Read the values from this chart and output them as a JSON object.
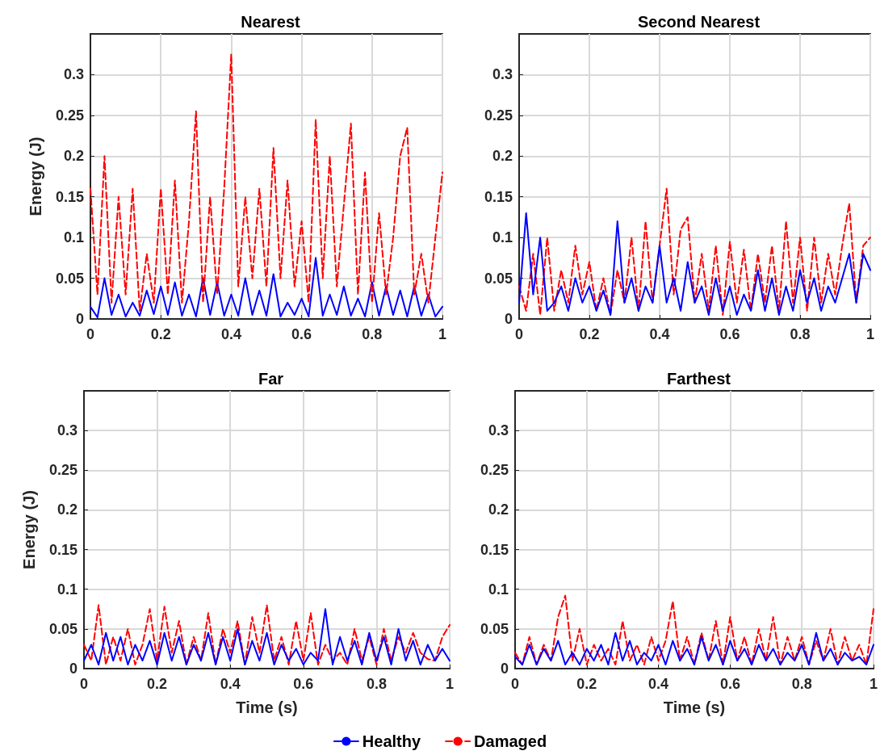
{
  "chart_data": [
    {
      "type": "line",
      "title": "Nearest",
      "ylabel": "Energy (J)",
      "xlim": [
        0,
        1
      ],
      "ylim": [
        0,
        0.35
      ],
      "xticks": [
        0,
        0.2,
        0.4,
        0.6,
        0.8,
        1
      ],
      "yticks": [
        0,
        0.05,
        0.1,
        0.15,
        0.2,
        0.25,
        0.3
      ],
      "grid": true,
      "legend": "bottom",
      "marker": "none",
      "x": [
        0,
        0.02,
        0.04,
        0.06,
        0.08,
        0.1,
        0.12,
        0.14,
        0.16,
        0.18,
        0.2,
        0.22,
        0.24,
        0.26,
        0.28,
        0.3,
        0.32,
        0.34,
        0.36,
        0.38,
        0.4,
        0.42,
        0.44,
        0.46,
        0.48,
        0.5,
        0.52,
        0.54,
        0.56,
        0.58,
        0.6,
        0.62,
        0.64,
        0.66,
        0.68,
        0.7,
        0.72,
        0.74,
        0.76,
        0.78,
        0.8,
        0.82,
        0.84,
        0.86,
        0.88,
        0.9,
        0.92,
        0.94,
        0.96,
        0.98,
        1
      ],
      "series": [
        {
          "name": "Healthy",
          "color": "#0000ff",
          "line_style": "solid",
          "values": [
            0.015,
            0.002,
            0.05,
            0.005,
            0.03,
            0.003,
            0.02,
            0.004,
            0.035,
            0.006,
            0.04,
            0.005,
            0.045,
            0.004,
            0.03,
            0.003,
            0.05,
            0.005,
            0.045,
            0.004,
            0.03,
            0.004,
            0.05,
            0.005,
            0.035,
            0.004,
            0.055,
            0.003,
            0.02,
            0.005,
            0.025,
            0.003,
            0.075,
            0.004,
            0.03,
            0.005,
            0.04,
            0.004,
            0.025,
            0.003,
            0.045,
            0.004,
            0.04,
            0.005,
            0.035,
            0.003,
            0.04,
            0.004,
            0.03,
            0.003,
            0.015
          ]
        },
        {
          "name": "Damaged",
          "color": "#ff0000",
          "line_style": "dashed",
          "values": [
            0.16,
            0.03,
            0.2,
            0.02,
            0.15,
            0.03,
            0.16,
            0.01,
            0.08,
            0.02,
            0.16,
            0.03,
            0.17,
            0.02,
            0.12,
            0.255,
            0.02,
            0.15,
            0.03,
            0.16,
            0.325,
            0.04,
            0.15,
            0.05,
            0.16,
            0.04,
            0.21,
            0.05,
            0.17,
            0.04,
            0.12,
            0.02,
            0.245,
            0.05,
            0.2,
            0.04,
            0.14,
            0.24,
            0.03,
            0.18,
            0.02,
            0.13,
            0.03,
            0.1,
            0.2,
            0.235,
            0.03,
            0.08,
            0.02,
            0.1,
            0.18
          ]
        }
      ]
    },
    {
      "type": "line",
      "title": "Second Nearest",
      "xlim": [
        0,
        1
      ],
      "ylim": [
        0,
        0.35
      ],
      "xticks": [
        0,
        0.2,
        0.4,
        0.6,
        0.8,
        1
      ],
      "yticks": [
        0,
        0.05,
        0.1,
        0.15,
        0.2,
        0.25,
        0.3
      ],
      "grid": true,
      "legend": "bottom",
      "marker": "none",
      "x": [
        0,
        0.02,
        0.04,
        0.06,
        0.08,
        0.1,
        0.12,
        0.14,
        0.16,
        0.18,
        0.2,
        0.22,
        0.24,
        0.26,
        0.28,
        0.3,
        0.32,
        0.34,
        0.36,
        0.38,
        0.4,
        0.42,
        0.44,
        0.46,
        0.48,
        0.5,
        0.52,
        0.54,
        0.56,
        0.58,
        0.6,
        0.62,
        0.64,
        0.66,
        0.68,
        0.7,
        0.72,
        0.74,
        0.76,
        0.78,
        0.8,
        0.82,
        0.84,
        0.86,
        0.88,
        0.9,
        0.92,
        0.94,
        0.96,
        0.98,
        1
      ],
      "series": [
        {
          "name": "Damaged",
          "color": "#ff0000",
          "line_style": "dashed",
          "values": [
            0.04,
            0.01,
            0.08,
            0.005,
            0.1,
            0.01,
            0.06,
            0.02,
            0.09,
            0.03,
            0.07,
            0.01,
            0.05,
            0.005,
            0.06,
            0.02,
            0.1,
            0.01,
            0.12,
            0.02,
            0.09,
            0.16,
            0.03,
            0.11,
            0.125,
            0.02,
            0.08,
            0.01,
            0.09,
            0.005,
            0.095,
            0.02,
            0.085,
            0.01,
            0.08,
            0.02,
            0.09,
            0.01,
            0.12,
            0.02,
            0.1,
            0.01,
            0.1,
            0.02,
            0.08,
            0.03,
            0.09,
            0.142,
            0.02,
            0.09,
            0.1
          ]
        },
        {
          "name": "Healthy",
          "color": "#0000ff",
          "line_style": "solid",
          "values": [
            0.02,
            0.13,
            0.03,
            0.1,
            0.01,
            0.02,
            0.04,
            0.01,
            0.05,
            0.02,
            0.04,
            0.01,
            0.035,
            0.005,
            0.12,
            0.02,
            0.05,
            0.01,
            0.04,
            0.02,
            0.09,
            0.02,
            0.05,
            0.01,
            0.07,
            0.02,
            0.04,
            0.005,
            0.05,
            0.01,
            0.04,
            0.005,
            0.03,
            0.01,
            0.06,
            0.01,
            0.05,
            0.005,
            0.04,
            0.01,
            0.06,
            0.02,
            0.05,
            0.01,
            0.04,
            0.02,
            0.05,
            0.08,
            0.02,
            0.08,
            0.06
          ]
        }
      ]
    },
    {
      "type": "line",
      "title": "Far",
      "xlabel": "Time (s)",
      "ylabel": "Energy (J)",
      "xlim": [
        0,
        1
      ],
      "ylim": [
        0,
        0.35
      ],
      "xticks": [
        0,
        0.2,
        0.4,
        0.6,
        0.8,
        1
      ],
      "yticks": [
        0,
        0.05,
        0.1,
        0.15,
        0.2,
        0.25,
        0.3
      ],
      "grid": true,
      "legend": "bottom",
      "marker": "none",
      "x": [
        0,
        0.02,
        0.04,
        0.06,
        0.08,
        0.1,
        0.12,
        0.14,
        0.16,
        0.18,
        0.2,
        0.22,
        0.24,
        0.26,
        0.28,
        0.3,
        0.32,
        0.34,
        0.36,
        0.38,
        0.4,
        0.42,
        0.44,
        0.46,
        0.48,
        0.5,
        0.52,
        0.54,
        0.56,
        0.58,
        0.6,
        0.62,
        0.64,
        0.66,
        0.68,
        0.7,
        0.72,
        0.74,
        0.76,
        0.78,
        0.8,
        0.82,
        0.84,
        0.86,
        0.88,
        0.9,
        0.92,
        0.94,
        0.96,
        0.98,
        1
      ],
      "series": [
        {
          "name": "Damaged",
          "color": "#ff0000",
          "line_style": "dashed",
          "values": [
            0.03,
            0.01,
            0.08,
            0.005,
            0.04,
            0.01,
            0.05,
            0.005,
            0.03,
            0.075,
            0.01,
            0.078,
            0.02,
            0.06,
            0.005,
            0.04,
            0.01,
            0.07,
            0.005,
            0.05,
            0.02,
            0.06,
            0.005,
            0.065,
            0.02,
            0.08,
            0.01,
            0.04,
            0.005,
            0.06,
            0.01,
            0.07,
            0.005,
            0.03,
            0.01,
            0.02,
            0.005,
            0.05,
            0.01,
            0.04,
            0.005,
            0.05,
            0.01,
            0.04,
            0.02,
            0.045,
            0.02,
            0.012,
            0.01,
            0.04,
            0.055
          ]
        },
        {
          "name": "Healthy",
          "color": "#0000ff",
          "line_style": "solid",
          "values": [
            0.01,
            0.03,
            0.005,
            0.045,
            0.01,
            0.04,
            0.005,
            0.03,
            0.01,
            0.035,
            0.005,
            0.045,
            0.01,
            0.04,
            0.005,
            0.03,
            0.01,
            0.045,
            0.005,
            0.04,
            0.01,
            0.05,
            0.005,
            0.035,
            0.01,
            0.045,
            0.005,
            0.03,
            0.01,
            0.025,
            0.005,
            0.02,
            0.01,
            0.075,
            0.005,
            0.04,
            0.01,
            0.035,
            0.005,
            0.045,
            0.01,
            0.04,
            0.005,
            0.05,
            0.01,
            0.035,
            0.005,
            0.03,
            0.01,
            0.025,
            0.01
          ]
        }
      ]
    },
    {
      "type": "line",
      "title": "Farthest",
      "xlabel": "Time (s)",
      "xlim": [
        0,
        1
      ],
      "ylim": [
        0,
        0.35
      ],
      "xticks": [
        0,
        0.2,
        0.4,
        0.6,
        0.8,
        1
      ],
      "yticks": [
        0,
        0.05,
        0.1,
        0.15,
        0.2,
        0.25,
        0.3
      ],
      "grid": true,
      "legend": "bottom",
      "marker": "none",
      "x": [
        0,
        0.02,
        0.04,
        0.06,
        0.08,
        0.1,
        0.12,
        0.14,
        0.16,
        0.18,
        0.2,
        0.22,
        0.24,
        0.26,
        0.28,
        0.3,
        0.32,
        0.34,
        0.36,
        0.38,
        0.4,
        0.42,
        0.44,
        0.46,
        0.48,
        0.5,
        0.52,
        0.54,
        0.56,
        0.58,
        0.6,
        0.62,
        0.64,
        0.66,
        0.68,
        0.7,
        0.72,
        0.74,
        0.76,
        0.78,
        0.8,
        0.82,
        0.84,
        0.86,
        0.88,
        0.9,
        0.92,
        0.94,
        0.96,
        0.98,
        1
      ],
      "series": [
        {
          "name": "Damaged",
          "color": "#ff0000",
          "line_style": "dashed",
          "values": [
            0.02,
            0.005,
            0.04,
            0.005,
            0.03,
            0.01,
            0.065,
            0.092,
            0.01,
            0.05,
            0.005,
            0.03,
            0.01,
            0.025,
            0.005,
            0.06,
            0.01,
            0.03,
            0.005,
            0.04,
            0.01,
            0.035,
            0.085,
            0.01,
            0.04,
            0.005,
            0.045,
            0.01,
            0.06,
            0.005,
            0.065,
            0.01,
            0.04,
            0.005,
            0.05,
            0.01,
            0.065,
            0.005,
            0.04,
            0.01,
            0.04,
            0.005,
            0.035,
            0.01,
            0.05,
            0.005,
            0.04,
            0.01,
            0.03,
            0.005,
            0.075
          ]
        },
        {
          "name": "Healthy",
          "color": "#0000ff",
          "line_style": "solid",
          "values": [
            0.015,
            0.005,
            0.03,
            0.005,
            0.025,
            0.01,
            0.035,
            0.005,
            0.02,
            0.005,
            0.025,
            0.01,
            0.03,
            0.005,
            0.045,
            0.01,
            0.035,
            0.005,
            0.02,
            0.01,
            0.03,
            0.005,
            0.035,
            0.01,
            0.025,
            0.005,
            0.04,
            0.01,
            0.03,
            0.005,
            0.035,
            0.01,
            0.025,
            0.005,
            0.03,
            0.01,
            0.025,
            0.005,
            0.02,
            0.01,
            0.03,
            0.005,
            0.045,
            0.01,
            0.025,
            0.005,
            0.02,
            0.01,
            0.015,
            0.005,
            0.03
          ]
        }
      ]
    }
  ]
}
